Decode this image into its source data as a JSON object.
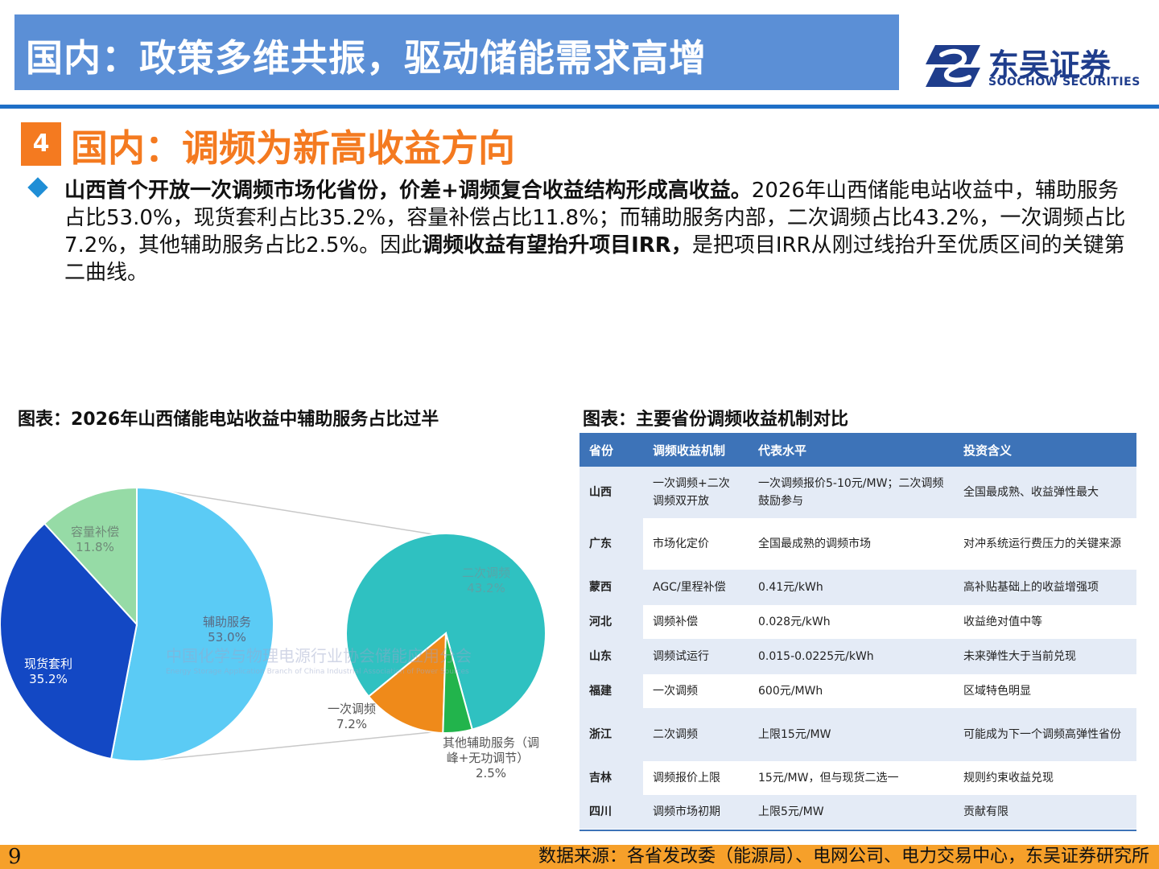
{
  "header": {
    "title": "国内：政策多维共振，驱动储能需求高增",
    "logo_cn": "东吴证券",
    "logo_en": "SOOCHOW SECURITIES",
    "brand_color": "#1f3d8c",
    "bar_color": "#5b8fd6"
  },
  "section": {
    "number": "4",
    "title": "国内：调频为新高收益方向",
    "accent_color": "#f47a20"
  },
  "paragraph": {
    "bold_lead": "山西首个开放一次调频市场化省份，价差+调频复合收益结构形成高收益。",
    "text_1": "2026年山西储能电站收益中，辅助服务占比53.0%，现货套利占比35.2%，容量补偿占比11.8%；而辅助服务内部，二次调频占比43.2%，一次调频占比7.2%，其他辅助服务占比2.5%。因此",
    "bold_mid": "调频收益有望抬升项目IRR，",
    "text_2": "是把项目IRR从刚过线抬升至优质区间的关键第二曲线。"
  },
  "left_chart": {
    "title": "图表：2026年山西储能电站收益中辅助服务占比过半",
    "watermark_cn": "中国化学与物理电源行业协会储能应用分会",
    "watermark_en": "Energy Storage Application Branch of China Industrial Association of Power Sources"
  },
  "chart_data": {
    "type": "pie",
    "main": {
      "slices": [
        {
          "label": "辅助服务",
          "value": 53.0,
          "value_label": "53.0%",
          "color": "#5bcbf5"
        },
        {
          "label": "现货套利",
          "value": 35.2,
          "value_label": "35.2%",
          "color": "#1348c4"
        },
        {
          "label": "容量补偿",
          "value": 11.8,
          "value_label": "11.8%",
          "color": "#96dba6"
        }
      ]
    },
    "breakdown": {
      "slices": [
        {
          "label": "二次调频",
          "value": 43.2,
          "value_label": "43.2%",
          "color": "#2fc1c1"
        },
        {
          "label": "一次调频",
          "value": 7.2,
          "value_label": "7.2%",
          "color": "#ef8a1a"
        },
        {
          "label": "其他辅助服务（调峰+无功调节）",
          "label_line1": "其他辅助服务（调",
          "label_line2": "峰+无功调节）",
          "value": 2.5,
          "value_label": "2.5%",
          "color": "#22b44c"
        }
      ]
    }
  },
  "right_table": {
    "title": "图表：主要省份调频收益机制对比",
    "headers": [
      "省份",
      "调频收益机制",
      "代表水平",
      "投资含义"
    ],
    "rows": [
      [
        "山西",
        "一次调频+二次调频双开放",
        "一次调频报价5-10元/MW；二次调频鼓励参与",
        "全国最成熟、收益弹性最大"
      ],
      [
        "广东",
        "市场化定价",
        "全国最成熟的调频市场",
        "对冲系统运行费压力的关键来源"
      ],
      [
        "蒙西",
        "AGC/里程补偿",
        "0.41元/kWh",
        "高补贴基础上的收益增强项"
      ],
      [
        "河北",
        "调频补偿",
        "0.028元/kWh",
        "收益绝对值中等"
      ],
      [
        "山东",
        "调频试运行",
        "0.015-0.0225元/kWh",
        "未来弹性大于当前兑现"
      ],
      [
        "福建",
        "一次调频",
        "600元/MWh",
        "区域特色明显"
      ],
      [
        "浙江",
        "二次调频",
        "上限15元/MW",
        "可能成为下一个调频高弹性省份"
      ],
      [
        "吉林",
        "调频报价上限",
        "15元/MW，但与现货二选一",
        "规则约束收益兑现"
      ],
      [
        "四川",
        "调频市场初期",
        "上限5元/MW",
        "贡献有限"
      ]
    ],
    "header_color": "#3d73b8"
  },
  "footer": {
    "page": "9",
    "source": "数据来源：各省发改委（能源局）、电网公司、电力交易中心，东吴证券研究所",
    "color": "#f6a02a"
  }
}
